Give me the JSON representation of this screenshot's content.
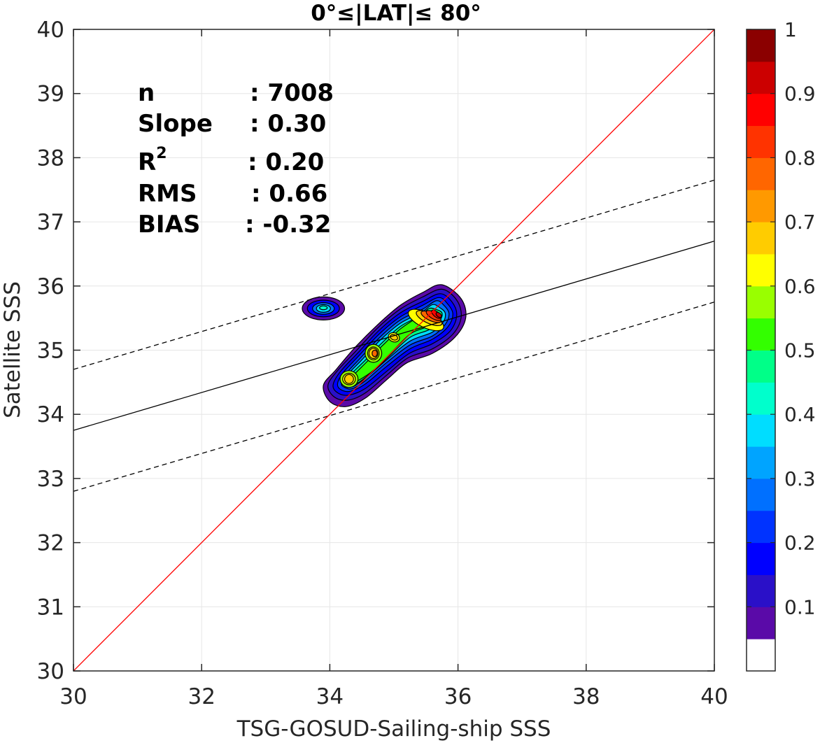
{
  "chart_data": {
    "type": "contour",
    "title": "0°≤|LAT|≤ 80°",
    "xlabel": "TSG-GOSUD-Sailing-ship SSS",
    "ylabel": "Satellite SSS",
    "xlim": [
      30,
      40
    ],
    "ylim": [
      30,
      40
    ],
    "xticks": [
      "30",
      "32",
      "34",
      "36",
      "38",
      "40"
    ],
    "yticks": [
      "30",
      "31",
      "32",
      "33",
      "34",
      "35",
      "36",
      "37",
      "38",
      "39",
      "40"
    ],
    "grid": true,
    "stats": [
      {
        "label": "n",
        "value": ": 7008"
      },
      {
        "label": "Slope",
        "value": ": 0.30"
      },
      {
        "label": "R",
        "sup": "2",
        "value": ": 0.20"
      },
      {
        "label": "RMS",
        "value": ": 0.66"
      },
      {
        "label": "BIAS",
        "value": ": -0.32"
      }
    ],
    "lines": {
      "one_to_one": {
        "x": [
          30,
          40
        ],
        "y": [
          30,
          40
        ],
        "color": "#ff0000"
      },
      "regression": {
        "x": [
          30,
          40
        ],
        "y": [
          33.75,
          36.7
        ],
        "color": "#000000"
      },
      "regression_upper": {
        "x": [
          30,
          40
        ],
        "y": [
          34.7,
          37.65
        ],
        "color": "#000000",
        "style": "dashed"
      },
      "regression_lower": {
        "x": [
          30,
          40
        ],
        "y": [
          32.8,
          35.75
        ],
        "color": "#000000",
        "style": "dashed"
      }
    },
    "density_peaks": [
      {
        "x": 35.65,
        "y": 35.55,
        "density": 0.92
      },
      {
        "x": 35.45,
        "y": 35.45,
        "density": 0.8
      },
      {
        "x": 34.65,
        "y": 34.95,
        "density": 0.65
      },
      {
        "x": 35.0,
        "y": 35.2,
        "density": 0.6
      },
      {
        "x": 34.3,
        "y": 34.55,
        "density": 0.65
      },
      {
        "x": 33.9,
        "y": 35.65,
        "density": 0.4
      }
    ],
    "colorbar": {
      "ticks": [
        "0.1",
        "0.2",
        "0.3",
        "0.4",
        "0.5",
        "0.6",
        "0.7",
        "0.8",
        "0.9",
        "1"
      ],
      "colors": [
        "#ffffff",
        "#5a0aa8",
        "#2a10c8",
        "#0000ff",
        "#0033ff",
        "#0070ff",
        "#00a4ff",
        "#00ddff",
        "#00ffcc",
        "#00ff88",
        "#33ff00",
        "#99ff00",
        "#ffff00",
        "#ffcc00",
        "#ff9900",
        "#ff6600",
        "#ff3300",
        "#ff0000",
        "#cc0000",
        "#8b0000"
      ]
    }
  }
}
